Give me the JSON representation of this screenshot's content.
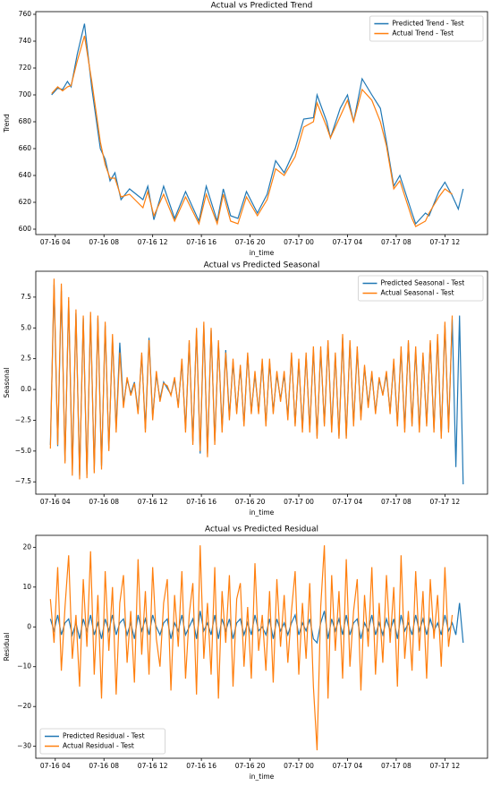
{
  "chart_data": [
    {
      "type": "line",
      "title": "Actual vs Predicted Trend",
      "xlabel": "in_time",
      "ylabel": "Trend",
      "legend": "upper right",
      "xlim": [
        2.4,
        39.5
      ],
      "xticks": [
        {
          "value": 4,
          "label": "07-16 04"
        },
        {
          "value": 8,
          "label": "07-16 08"
        },
        {
          "value": 12,
          "label": "07-16 12"
        },
        {
          "value": 16,
          "label": "07-16 16"
        },
        {
          "value": 20,
          "label": "07-16 20"
        },
        {
          "value": 24,
          "label": "07-17 00"
        },
        {
          "value": 28,
          "label": "07-17 04"
        },
        {
          "value": 32,
          "label": "07-17 08"
        },
        {
          "value": 36,
          "label": "07-17 12"
        }
      ],
      "ylim": [
        596,
        762
      ],
      "yticks": [
        600,
        620,
        640,
        660,
        680,
        700,
        720,
        740,
        760
      ],
      "x": [
        3.7,
        4.2,
        4.6,
        5,
        5.3,
        5.8,
        6.4,
        7,
        7.7,
        8.1,
        8.5,
        8.9,
        9.4,
        10.1,
        11.2,
        11.6,
        12.1,
        12.9,
        13.8,
        14.7,
        15.8,
        16.4,
        17.3,
        17.8,
        18.4,
        19,
        19.7,
        20.6,
        21.4,
        22.1,
        22.8,
        23.7,
        24.4,
        25.2,
        25.5,
        26.3,
        26.6,
        27.4,
        28,
        28.5,
        29.2,
        30,
        30.7,
        31.2,
        31.8,
        32.3,
        33.3,
        33.6,
        34.4,
        34.7,
        35.5,
        36,
        36.6,
        37.1,
        37.5
      ],
      "series": [
        {
          "name": "Predicted Trend - Test",
          "color": "#1f77b4",
          "values": [
            700,
            705,
            704,
            710,
            706,
            730,
            753,
            705,
            660,
            652,
            636,
            642,
            622,
            630,
            622,
            632,
            607,
            632,
            608,
            628,
            606,
            632,
            606,
            630,
            610,
            608,
            628,
            612,
            626,
            651,
            642,
            660,
            682,
            683,
            700,
            680,
            668,
            690,
            700,
            680,
            712,
            700,
            690,
            665,
            632,
            640,
            612,
            604,
            612,
            610,
            628,
            635,
            625,
            615,
            630
          ]
        },
        {
          "name": "Actual Trend - Test",
          "color": "#ff7f0e",
          "values": [
            701,
            706,
            703,
            706,
            707,
            725,
            744,
            710,
            665,
            648,
            638,
            638,
            624,
            626,
            616,
            628,
            610,
            626,
            606,
            624,
            604,
            626,
            604,
            626,
            606,
            604,
            624,
            610,
            622,
            645,
            640,
            654,
            676,
            680,
            694,
            676,
            668,
            684,
            696,
            680,
            704,
            696,
            680,
            662,
            630,
            636,
            608,
            602,
            606,
            612,
            624,
            630,
            626,
            null,
            null
          ]
        }
      ]
    },
    {
      "type": "line",
      "title": "Actual vs Predicted Seasonal",
      "xlabel": "in_time",
      "ylabel": "Seasonal",
      "legend": "upper right",
      "xlim": [
        2.4,
        39.5
      ],
      "xticks": [
        {
          "value": 4,
          "label": "07-16 04"
        },
        {
          "value": 8,
          "label": "07-16 08"
        },
        {
          "value": 12,
          "label": "07-16 12"
        },
        {
          "value": 16,
          "label": "07-16 16"
        },
        {
          "value": 20,
          "label": "07-16 20"
        },
        {
          "value": 24,
          "label": "07-17 00"
        },
        {
          "value": 28,
          "label": "07-17 04"
        },
        {
          "value": 32,
          "label": "07-17 08"
        },
        {
          "value": 36,
          "label": "07-17 12"
        }
      ],
      "ylim": [
        -8.5,
        9.6
      ],
      "yticks": [
        {
          "value": -7.5,
          "label": "−7.5"
        },
        {
          "value": -5,
          "label": "−5.0"
        },
        {
          "value": -2.5,
          "label": "−2.5"
        },
        {
          "value": 0,
          "label": "0.0"
        },
        2.5,
        {
          "value": 5,
          "label": "5.0"
        },
        7.5
      ],
      "x": [
        3.6,
        3.9,
        4.2,
        4.5,
        4.8,
        5.1,
        5.4,
        5.7,
        6,
        6.3,
        6.6,
        6.9,
        7.2,
        7.5,
        7.8,
        8.1,
        8.4,
        8.7,
        9,
        9.3,
        9.6,
        9.9,
        10.2,
        10.5,
        10.8,
        11.1,
        11.4,
        11.7,
        12,
        12.3,
        12.6,
        12.9,
        13.2,
        13.5,
        13.8,
        14.1,
        14.4,
        14.7,
        15,
        15.3,
        15.6,
        15.9,
        16.2,
        16.5,
        16.8,
        17.1,
        17.4,
        17.7,
        18,
        18.3,
        18.6,
        18.9,
        19.2,
        19.5,
        19.8,
        20.1,
        20.4,
        20.7,
        21,
        21.3,
        21.6,
        21.9,
        22.2,
        22.5,
        22.8,
        23.1,
        23.4,
        23.7,
        24,
        24.3,
        24.6,
        24.9,
        25.2,
        25.5,
        25.8,
        26.1,
        26.4,
        26.7,
        27,
        27.3,
        27.6,
        27.9,
        28.2,
        28.5,
        28.8,
        29.1,
        29.4,
        29.7,
        30,
        30.3,
        30.6,
        30.9,
        31.2,
        31.5,
        31.8,
        32.1,
        32.4,
        32.7,
        33,
        33.3,
        33.6,
        33.9,
        34.2,
        34.5,
        34.8,
        35.1,
        35.4,
        35.7,
        36,
        36.3,
        36.6,
        36.9,
        37.2,
        37.5
      ],
      "series": [
        {
          "name": "Predicted Seasonal - Test",
          "color": "#1f77b4",
          "values": [
            -4.5,
            8.5,
            -4.6,
            8,
            -5.8,
            7.2,
            -6.5,
            6.2,
            -7,
            5.8,
            -6.9,
            6,
            -6.5,
            5.8,
            -6.2,
            5.2,
            -4.8,
            4.2,
            -3.2,
            3.8,
            -1.2,
            0.8,
            -0.3,
            0.6,
            -1.8,
            2.8,
            -3.2,
            4.2,
            -2.2,
            1.2,
            -0.8,
            0.6,
            0.1,
            -0.4,
            0.8,
            -1.3,
            2.2,
            -3.2,
            3.8,
            -4.2,
            4.8,
            -5.2,
            5.2,
            -5.2,
            4.8,
            -4.2,
            3.8,
            -3.2,
            3.2,
            -2.2,
            2.2,
            -1.8,
            1.8,
            -2.8,
            2.8,
            -1.8,
            1.2,
            -1.8,
            2.2,
            -2.8,
            2.2,
            -1.8,
            1.2,
            -0.8,
            1.2,
            -2.2,
            2.8,
            -2.8,
            2.2,
            -3.2,
            2.8,
            -3.2,
            3.2,
            -3.8,
            3.2,
            -2.8,
            3.8,
            -3.2,
            2.8,
            -3.8,
            4.2,
            -3.8,
            3.8,
            -2.8,
            3.2,
            -2.2,
            1.8,
            -1.2,
            1.2,
            -1.8,
            0.8,
            -0.4,
            1.2,
            -1.8,
            2.2,
            -2.8,
            3.2,
            -3.2,
            3.8,
            -2.8,
            3.2,
            -3.2,
            2.8,
            -2.8,
            3.8,
            -3.2,
            4.2,
            -3.8,
            5.2,
            -3.2,
            5.7,
            -6.3,
            6,
            -7.7
          ]
        },
        {
          "name": "Actual Seasonal - Test",
          "color": "#ff7f0e",
          "values": [
            -4.8,
            9,
            -4.5,
            8.6,
            -6,
            7.5,
            -7,
            6.5,
            -7.3,
            6,
            -7.2,
            6.3,
            -6.8,
            6,
            -6.5,
            5.5,
            -5,
            4.5,
            -3.5,
            3,
            -1.5,
            1,
            -0.5,
            0.5,
            -2,
            3,
            -3.5,
            4,
            -2.5,
            1.5,
            -1,
            0.5,
            0.3,
            -0.5,
            1,
            -1.5,
            2.5,
            -3.5,
            4,
            -4.5,
            5,
            -5,
            5.5,
            -5.5,
            5,
            -4.5,
            4,
            -3.5,
            3,
            -2.5,
            2.5,
            -2,
            2,
            -3,
            3,
            -2,
            1.5,
            -2,
            2.5,
            -3,
            2.5,
            -2,
            1.5,
            -1,
            1.5,
            -2.5,
            3,
            -3,
            2.5,
            -3.5,
            3,
            -3.5,
            3.5,
            -4,
            3.5,
            -3,
            4,
            -3.5,
            3,
            -4,
            4.5,
            -4,
            4,
            -3,
            3.5,
            -2.5,
            2,
            -1.5,
            1.5,
            -2,
            1,
            -0.5,
            1.5,
            -2,
            2.5,
            -3,
            3.5,
            -3.5,
            4,
            -3,
            3.5,
            -3.5,
            3,
            -3,
            4,
            -3.5,
            4.5,
            -4,
            5.5,
            -3.5,
            6,
            null,
            null,
            null
          ]
        }
      ]
    },
    {
      "type": "line",
      "title": "Actual vs Predicted Residual",
      "xlabel": "in_time",
      "ylabel": "Residual",
      "legend": "lower left",
      "xlim": [
        2.4,
        39.5
      ],
      "xticks": [
        {
          "value": 4,
          "label": "07-16 04"
        },
        {
          "value": 8,
          "label": "07-16 08"
        },
        {
          "value": 12,
          "label": "07-16 12"
        },
        {
          "value": 16,
          "label": "07-16 16"
        },
        {
          "value": 20,
          "label": "07-16 20"
        },
        {
          "value": 24,
          "label": "07-17 00"
        },
        {
          "value": 28,
          "label": "07-17 04"
        },
        {
          "value": 32,
          "label": "07-17 08"
        },
        {
          "value": 36,
          "label": "07-17 12"
        }
      ],
      "ylim": [
        -33,
        23
      ],
      "yticks": [
        {
          "value": -30,
          "label": "−30"
        },
        {
          "value": -20,
          "label": "−20"
        },
        {
          "value": -10,
          "label": "−10"
        },
        0,
        10,
        20
      ],
      "x": [
        3.6,
        3.9,
        4.2,
        4.5,
        4.8,
        5.1,
        5.4,
        5.7,
        6,
        6.3,
        6.6,
        6.9,
        7.2,
        7.5,
        7.8,
        8.1,
        8.4,
        8.7,
        9,
        9.3,
        9.6,
        9.9,
        10.2,
        10.5,
        10.8,
        11.1,
        11.4,
        11.7,
        12,
        12.3,
        12.6,
        12.9,
        13.2,
        13.5,
        13.8,
        14.1,
        14.4,
        14.7,
        15,
        15.3,
        15.6,
        15.9,
        16.2,
        16.5,
        16.8,
        17.1,
        17.4,
        17.7,
        18,
        18.3,
        18.6,
        18.9,
        19.2,
        19.5,
        19.8,
        20.1,
        20.4,
        20.7,
        21,
        21.3,
        21.6,
        21.9,
        22.2,
        22.5,
        22.8,
        23.1,
        23.4,
        23.7,
        24,
        24.3,
        24.6,
        24.9,
        25.2,
        25.5,
        25.8,
        26.1,
        26.4,
        26.7,
        27,
        27.3,
        27.6,
        27.9,
        28.2,
        28.5,
        28.8,
        29.1,
        29.4,
        29.7,
        30,
        30.3,
        30.6,
        30.9,
        31.2,
        31.5,
        31.8,
        32.1,
        32.4,
        32.7,
        33,
        33.3,
        33.6,
        33.9,
        34.2,
        34.5,
        34.8,
        35.1,
        35.4,
        35.7,
        36,
        36.3,
        36.6,
        36.9,
        37.2,
        37.5
      ],
      "series": [
        {
          "name": "Predicted Residual - Test",
          "color": "#1f77b4",
          "values": [
            2,
            -1,
            3,
            -2,
            1,
            2,
            -2,
            1,
            -3,
            2,
            -1,
            3,
            -2,
            1,
            -3,
            2,
            -1,
            3,
            -2,
            1,
            2,
            -2,
            1,
            -3,
            3,
            -1,
            2,
            -2,
            3,
            0,
            -2,
            1,
            2,
            -3,
            1,
            -1,
            3,
            -2,
            0,
            2,
            -3,
            4,
            -1,
            1,
            -2,
            3,
            -3,
            2,
            -1,
            2,
            -3,
            1,
            2,
            -2,
            1,
            -2,
            3,
            -1,
            0,
            -2,
            2,
            -3,
            2,
            -1,
            1,
            -2,
            1,
            3,
            -2,
            1,
            -1,
            2,
            -3,
            -4,
            1,
            4,
            -3,
            2,
            -1,
            2,
            -2,
            3,
            -2,
            1,
            2,
            -3,
            1,
            -1,
            3,
            -2,
            1,
            -2,
            2,
            -1,
            2,
            -3,
            3,
            -1,
            1,
            -2,
            3,
            -1,
            2,
            -2,
            2,
            -1,
            1,
            -2,
            3,
            -1,
            1,
            -2,
            6,
            -4
          ]
        },
        {
          "name": "Actual Residual - Test",
          "color": "#ff7f0e",
          "values": [
            7,
            -4,
            15,
            -11,
            5,
            18,
            -8,
            3,
            -15,
            12,
            -5,
            19,
            -12,
            8,
            -18,
            14,
            -6,
            10,
            -17,
            6,
            13,
            -9,
            4,
            -14,
            17,
            -7,
            9,
            -12,
            15,
            -3,
            -10,
            6,
            12,
            -16,
            8,
            -5,
            14,
            -13,
            3,
            11,
            -17,
            20.5,
            -8,
            6,
            -12,
            15,
            -18,
            9,
            -4,
            13,
            -15,
            7,
            11,
            -10,
            5,
            -13,
            16,
            -6,
            3,
            -11,
            9,
            -14,
            12,
            -5,
            8,
            -9,
            4,
            14,
            -12,
            6,
            -8,
            11,
            -15,
            -31,
            5,
            20.5,
            -18,
            13,
            -6,
            9,
            -13,
            17,
            -10,
            4,
            12,
            -16,
            8,
            -5,
            15,
            -12,
            6,
            -9,
            13,
            -4,
            10,
            -15,
            18,
            -8,
            4,
            -11,
            14,
            -6,
            9,
            -13,
            12,
            -3,
            8,
            -10,
            15,
            -5,
            3,
            null,
            null,
            null
          ]
        }
      ]
    }
  ]
}
